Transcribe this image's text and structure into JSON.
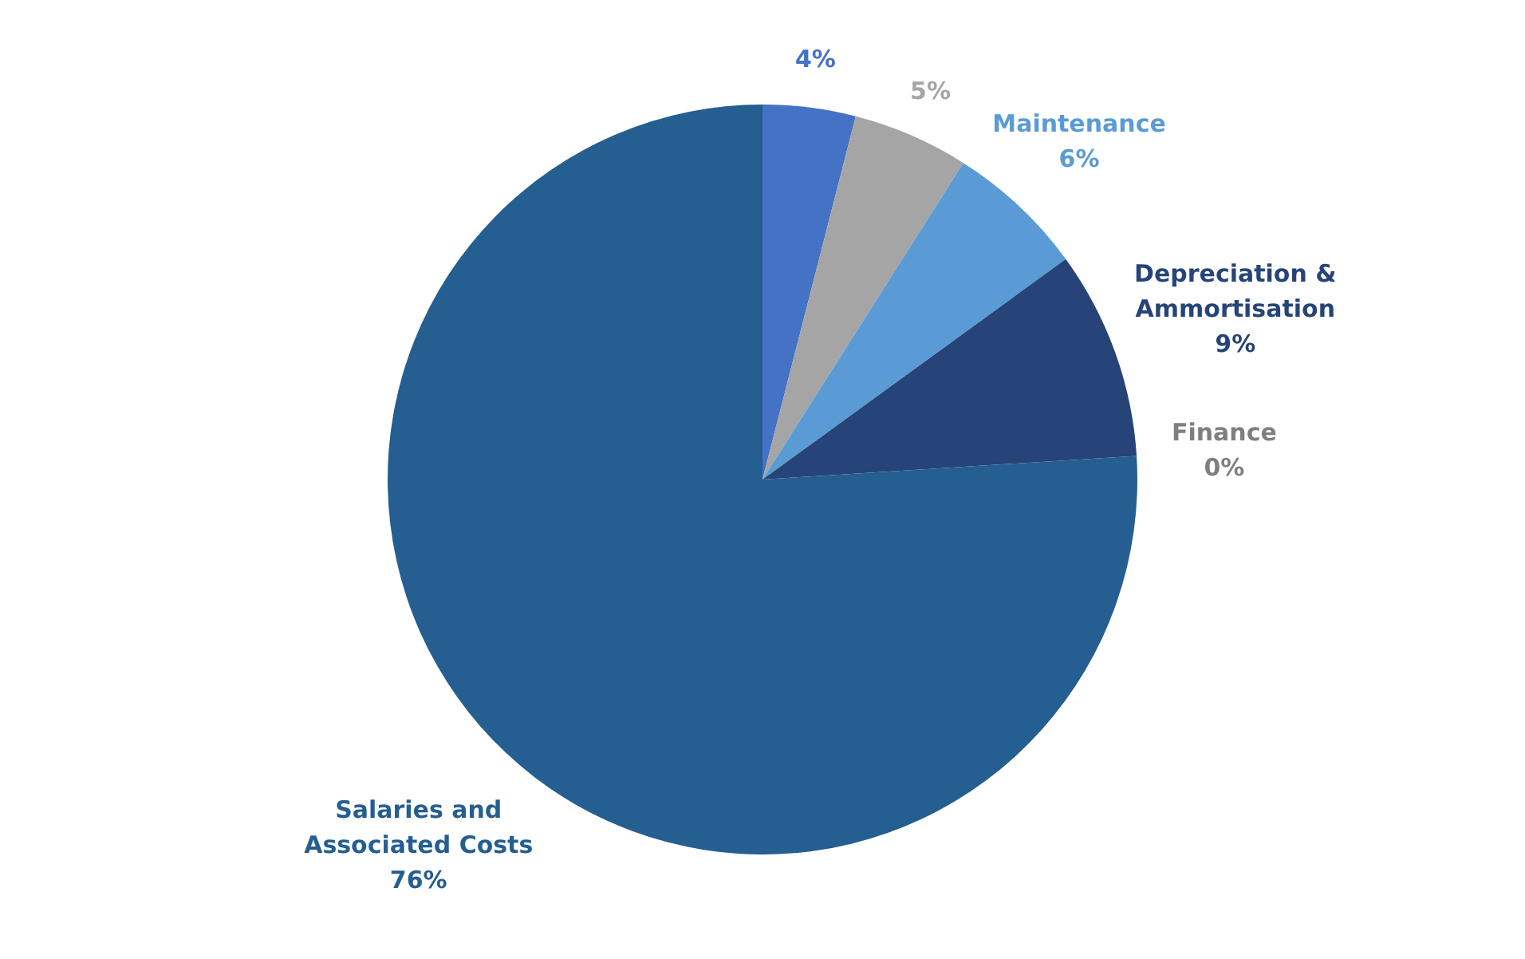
{
  "chart_data": {
    "type": "pie",
    "categories": [
      null,
      null,
      "Maintenance",
      "Depreciation & Ammortisation",
      "Finance",
      "Salaries and Associated Costs"
    ],
    "values": [
      4,
      5,
      6,
      9,
      0,
      76
    ],
    "value_labels": [
      "4%",
      "5%",
      "6%",
      "9%",
      "0%",
      "76%"
    ],
    "colors": [
      "#4472c4",
      "#a5a5a5",
      "#5b9bd5",
      "#264478",
      "#7f7f7f",
      "#255e91"
    ]
  }
}
